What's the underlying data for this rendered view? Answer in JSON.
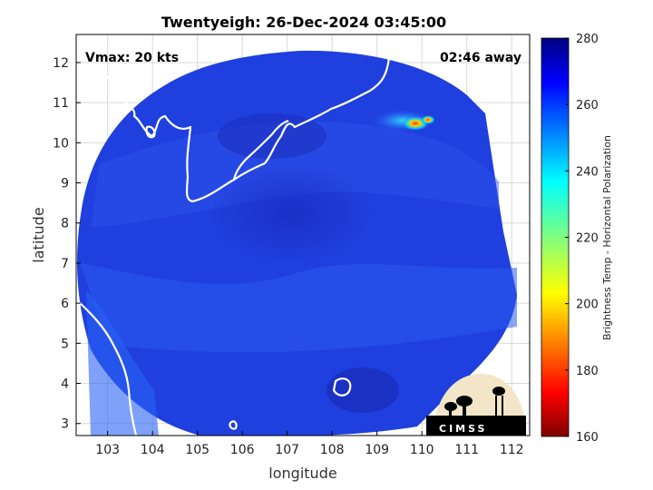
{
  "chart_data": {
    "type": "heatmap",
    "title": "Twentyeigh: 26-Dec-2024 03:45:00",
    "xlabel": "longitude",
    "ylabel": "latitude",
    "xlim": [
      102.3,
      112.4
    ],
    "ylim": [
      2.7,
      12.7
    ],
    "xticks": [
      103,
      104,
      105,
      106,
      107,
      108,
      109,
      110,
      111,
      112
    ],
    "yticks": [
      3,
      4,
      5,
      6,
      7,
      8,
      9,
      10,
      11,
      12
    ],
    "grid": true,
    "colorbar": {
      "label": "Brightness Temp - Horizontal Polarization",
      "range": [
        160,
        280
      ],
      "ticks": [
        160,
        180,
        200,
        220,
        240,
        260,
        280
      ],
      "colormap": "jet"
    },
    "annotations": {
      "intensity": "Vmax: 20 kts",
      "time_offset": "02:46 away"
    },
    "background_value": 262,
    "features": [
      {
        "name": "cold convection",
        "lon": 110.0,
        "lat": 10.5,
        "min_value": 200
      },
      {
        "name": "cold convection",
        "lon": 109.6,
        "lat": 10.6,
        "min_value": 235
      },
      {
        "name": "warm plume",
        "lon": 106.8,
        "lat": 8.2,
        "min_value": 268
      }
    ],
    "logo_text": "CIMSS"
  },
  "colors": {
    "frame": "#000000",
    "coastline": "#ffffff",
    "grid": "#d9d9d9",
    "swath_base": "#1c3ad9"
  }
}
